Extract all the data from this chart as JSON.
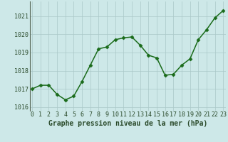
{
  "x": [
    0,
    1,
    2,
    3,
    4,
    5,
    6,
    7,
    8,
    9,
    10,
    11,
    12,
    13,
    14,
    15,
    16,
    17,
    18,
    19,
    20,
    21,
    22,
    23
  ],
  "y": [
    1017.0,
    1017.2,
    1017.2,
    1016.7,
    1016.4,
    1016.6,
    1017.4,
    1018.3,
    1019.2,
    1019.3,
    1019.7,
    1019.8,
    1019.85,
    1019.4,
    1018.85,
    1018.7,
    1017.75,
    1017.8,
    1018.3,
    1018.65,
    1019.7,
    1020.25,
    1020.9,
    1021.3
  ],
  "line_color": "#1a6b1a",
  "marker": "D",
  "marker_size": 2.5,
  "bg_color": "#cde8e8",
  "grid_color": "#aac8c8",
  "ylabel_ticks": [
    1016,
    1017,
    1018,
    1019,
    1020,
    1021
  ],
  "xlabel_ticks": [
    0,
    1,
    2,
    3,
    4,
    5,
    6,
    7,
    8,
    9,
    10,
    11,
    12,
    13,
    14,
    15,
    16,
    17,
    18,
    19,
    20,
    21,
    22,
    23
  ],
  "xlabel_labels": [
    "0",
    "1",
    "2",
    "3",
    "4",
    "5",
    "6",
    "7",
    "8",
    "9",
    "10",
    "11",
    "12",
    "13",
    "14",
    "15",
    "16",
    "17",
    "18",
    "19",
    "20",
    "21",
    "22",
    "23"
  ],
  "xlabel": "Graphe pression niveau de la mer (hPa)",
  "ylim": [
    1015.8,
    1021.8
  ],
  "xlim": [
    -0.3,
    23.3
  ],
  "text_color": "#2a4a2a",
  "spine_color": "#556655",
  "xlabel_fontsize": 7.0,
  "tick_fontsize": 6.0,
  "line_width": 1.1
}
